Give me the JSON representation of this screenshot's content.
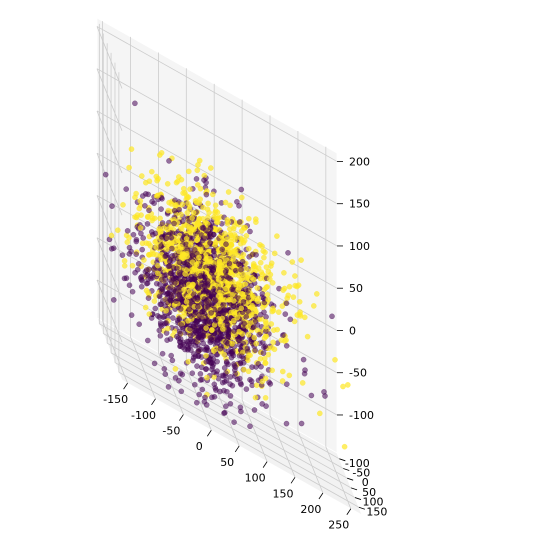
{
  "chart_data": {
    "type": "scatter",
    "projection": "3d",
    "title": "",
    "xlabel": "",
    "ylabel": "",
    "zlabel": "",
    "grid": true,
    "legend": "none",
    "xlim": [
      -160,
      270
    ],
    "ylim": [
      -130,
      190
    ],
    "zlim": [
      -145,
      210
    ],
    "xticks": [
      -150,
      -100,
      -50,
      0,
      50,
      100,
      150,
      200,
      250
    ],
    "yticks": [
      -100,
      -50,
      0,
      50,
      100,
      150
    ],
    "zticks": [
      -100,
      -50,
      0,
      50,
      100,
      150,
      200
    ],
    "pane_color": "#f2f2f2",
    "series": [
      {
        "color": "#440154",
        "alpha": 0.55,
        "cluster": {
          "count": 1400,
          "center": [
            10,
            40,
            -20
          ],
          "spread": [
            55,
            38,
            48
          ]
        },
        "outliers": [
          [
            240,
            20,
            40
          ],
          [
            230,
            -10,
            -60
          ],
          [
            -120,
            40,
            -60
          ],
          [
            150,
            100,
            100
          ],
          [
            20,
            80,
            120
          ],
          [
            -60,
            -20,
            60
          ],
          [
            120,
            -30,
            -90
          ],
          [
            60,
            140,
            -40
          ],
          [
            -100,
            90,
            -20
          ],
          [
            180,
            60,
            -100
          ],
          [
            -20,
            -60,
            -110
          ],
          [
            90,
            120,
            80
          ]
        ]
      },
      {
        "color": "#fde725",
        "alpha": 0.7,
        "cluster": {
          "count": 1200,
          "center": [
            25,
            25,
            10
          ],
          "spread": [
            60,
            40,
            42
          ]
        },
        "outliers": [
          [
            260,
            80,
            -20
          ],
          [
            250,
            110,
            -90
          ],
          [
            200,
            150,
            -60
          ],
          [
            -140,
            60,
            40
          ],
          [
            -130,
            10,
            -40
          ],
          [
            210,
            40,
            60
          ],
          [
            100,
            160,
            -30
          ],
          [
            230,
            130,
            10
          ],
          [
            0,
            20,
            130
          ],
          [
            -40,
            60,
            110
          ],
          [
            160,
            -40,
            -80
          ],
          [
            140,
            30,
            100
          ]
        ]
      }
    ]
  }
}
